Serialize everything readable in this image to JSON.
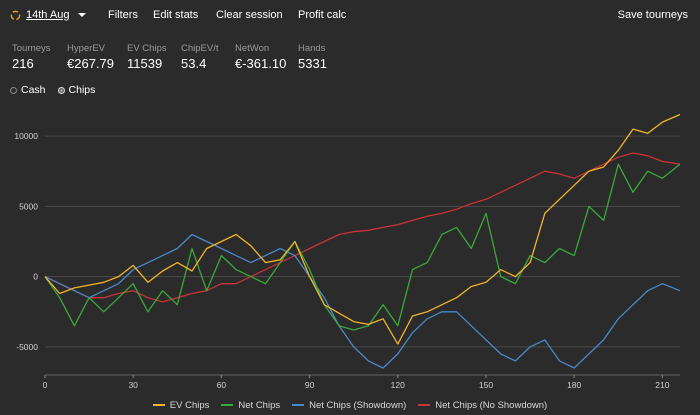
{
  "toolbar": {
    "date_label": "14th Aug",
    "filters": "Filters",
    "edit_stats": "Edit stats",
    "clear_session": "Clear session",
    "profit_calc": "Profit calc",
    "save_tourneys": "Save tourneys"
  },
  "stats": [
    {
      "label": "Tourneys",
      "value": "216"
    },
    {
      "label": "HyperEV",
      "value": "€267.79"
    },
    {
      "label": "EV Chips",
      "value": "11539"
    },
    {
      "label": "ChipEV/t",
      "value": "53.4"
    },
    {
      "label": "NetWon",
      "value": "€-361.10"
    },
    {
      "label": "Hands",
      "value": "5331"
    }
  ],
  "mode": {
    "options": [
      "Cash",
      "Chips"
    ],
    "selected": "Chips"
  },
  "chart_data": {
    "type": "line",
    "xlim": [
      0,
      216
    ],
    "ylim": [
      -7000,
      12000
    ],
    "xticks": [
      0,
      30,
      60,
      90,
      120,
      150,
      180,
      210
    ],
    "yticks": [
      -5000,
      0,
      5000,
      10000
    ],
    "series": [
      {
        "name": "EV Chips",
        "color": "#f0b429",
        "x": [
          0,
          5,
          10,
          15,
          20,
          25,
          30,
          35,
          40,
          45,
          50,
          55,
          60,
          65,
          70,
          75,
          80,
          85,
          90,
          95,
          100,
          105,
          110,
          115,
          120,
          125,
          130,
          135,
          140,
          145,
          150,
          155,
          160,
          165,
          170,
          175,
          180,
          185,
          190,
          195,
          200,
          205,
          210,
          216
        ],
        "y": [
          0,
          -1200,
          -800,
          -600,
          -400,
          0,
          800,
          -400,
          400,
          1000,
          400,
          2000,
          2500,
          3000,
          2200,
          1000,
          1200,
          2500,
          0,
          -2000,
          -2600,
          -3200,
          -3400,
          -3000,
          -4800,
          -2800,
          -2500,
          -2000,
          -1500,
          -700,
          -400,
          500,
          0,
          1000,
          4500,
          5500,
          6500,
          7500,
          7800,
          9000,
          10500,
          10200,
          11000,
          11539
        ]
      },
      {
        "name": "Net Chips",
        "color": "#3aa83a",
        "x": [
          0,
          5,
          10,
          15,
          20,
          25,
          30,
          35,
          40,
          45,
          50,
          55,
          60,
          65,
          70,
          75,
          80,
          85,
          90,
          95,
          100,
          105,
          110,
          115,
          120,
          125,
          130,
          135,
          140,
          145,
          150,
          155,
          160,
          165,
          170,
          175,
          180,
          185,
          190,
          195,
          200,
          205,
          210,
          216
        ],
        "y": [
          0,
          -1500,
          -3500,
          -1500,
          -2500,
          -1500,
          -500,
          -2500,
          -1000,
          -2000,
          2000,
          -1000,
          1500,
          500,
          0,
          -500,
          1000,
          2500,
          500,
          -2000,
          -3500,
          -3800,
          -3500,
          -2000,
          -3500,
          500,
          1000,
          3000,
          3500,
          2000,
          4500,
          0,
          -500,
          1500,
          1000,
          2000,
          1500,
          5000,
          4000,
          8000,
          6000,
          7500,
          7000,
          8000
        ]
      },
      {
        "name": "Net Chips (Showdown)",
        "color": "#4a88c8",
        "x": [
          0,
          5,
          10,
          15,
          20,
          25,
          30,
          35,
          40,
          45,
          50,
          55,
          60,
          65,
          70,
          75,
          80,
          85,
          90,
          95,
          100,
          105,
          110,
          115,
          120,
          125,
          130,
          135,
          140,
          145,
          150,
          155,
          160,
          165,
          170,
          175,
          180,
          185,
          190,
          195,
          200,
          205,
          210,
          216
        ],
        "y": [
          0,
          -500,
          -1000,
          -1500,
          -1000,
          -500,
          500,
          1000,
          1500,
          2000,
          3000,
          2500,
          2000,
          1500,
          1000,
          1500,
          2000,
          1500,
          0,
          -1500,
          -3500,
          -5000,
          -6000,
          -6500,
          -5500,
          -4000,
          -3000,
          -2500,
          -2500,
          -3500,
          -4500,
          -5500,
          -6000,
          -5000,
          -4500,
          -6000,
          -6500,
          -5500,
          -4500,
          -3000,
          -2000,
          -1000,
          -500,
          -1000
        ]
      },
      {
        "name": "Net Chips (No Showdown)",
        "color": "#c83238",
        "x": [
          0,
          5,
          10,
          15,
          20,
          25,
          30,
          35,
          40,
          45,
          50,
          55,
          60,
          65,
          70,
          75,
          80,
          85,
          90,
          95,
          100,
          105,
          110,
          115,
          120,
          125,
          130,
          135,
          140,
          145,
          150,
          155,
          160,
          165,
          170,
          175,
          180,
          185,
          190,
          195,
          200,
          205,
          210,
          216
        ],
        "y": [
          0,
          -500,
          -1000,
          -1500,
          -1500,
          -1200,
          -1000,
          -1500,
          -1800,
          -1500,
          -1200,
          -1000,
          -500,
          -500,
          0,
          500,
          1000,
          1500,
          2000,
          2500,
          3000,
          3200,
          3300,
          3500,
          3700,
          4000,
          4300,
          4500,
          4800,
          5200,
          5500,
          6000,
          6500,
          7000,
          7500,
          7300,
          7000,
          7500,
          8000,
          8500,
          8800,
          8600,
          8200,
          8000
        ]
      }
    ]
  }
}
